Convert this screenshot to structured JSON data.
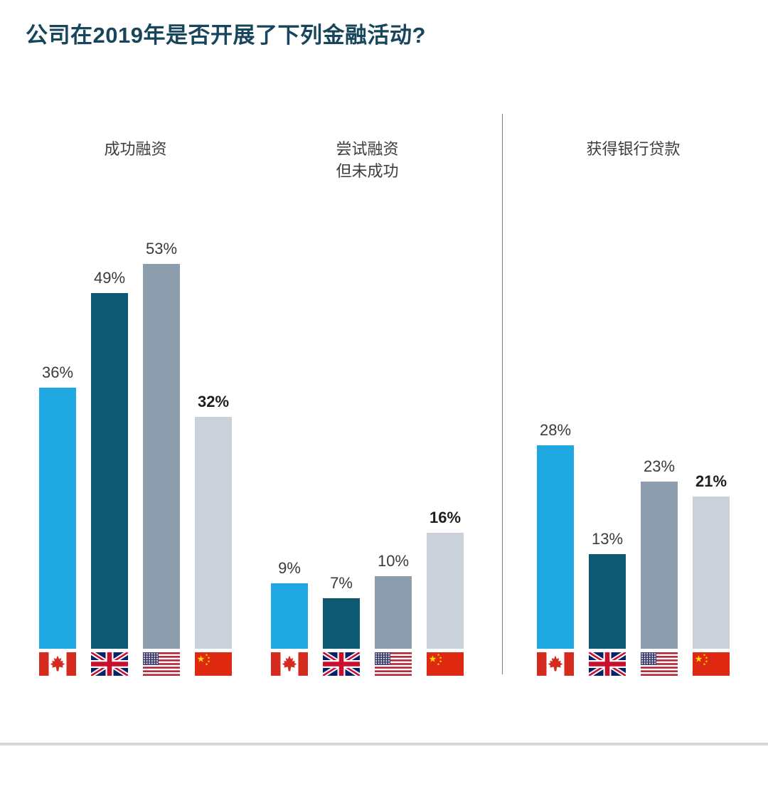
{
  "title": "公司在2019年是否开展了下列金融活动?",
  "chart_data": {
    "type": "bar",
    "title": "公司在2019年是否开展了下列金融活动?",
    "value_suffix": "%",
    "legend_position": "flags-under-bars",
    "grid": false,
    "groups": [
      {
        "id": "successful-financing",
        "label_lines": [
          "成功融资"
        ]
      },
      {
        "id": "attempted-financing-unsuccessful",
        "label_lines": [
          "尝试融资",
          "但未成功"
        ]
      },
      {
        "id": "obtained-bank-loan",
        "label_lines": [
          "获得银行贷款"
        ]
      }
    ],
    "series": [
      {
        "name": "Canada",
        "flag": "canada",
        "color": "#1fa8e1",
        "values": [
          36,
          9,
          28
        ],
        "bold_value_labels": false
      },
      {
        "name": "United Kingdom",
        "flag": "uk",
        "color": "#0e5972",
        "values": [
          49,
          7,
          13
        ],
        "bold_value_labels": false
      },
      {
        "name": "United States",
        "flag": "usa",
        "color": "#8c9dad",
        "values": [
          53,
          10,
          23
        ],
        "bold_value_labels": false
      },
      {
        "name": "China",
        "flag": "china",
        "color": "#cbd1db",
        "values": [
          32,
          16,
          21
        ],
        "bold_value_labels": true
      }
    ],
    "colors": {
      "title": "#17455c",
      "group_label": "#3d3d3d",
      "value_label": "#3a3a3a",
      "divider": "#7f7f7f",
      "bottom_rule": "#d6d6d6"
    }
  }
}
